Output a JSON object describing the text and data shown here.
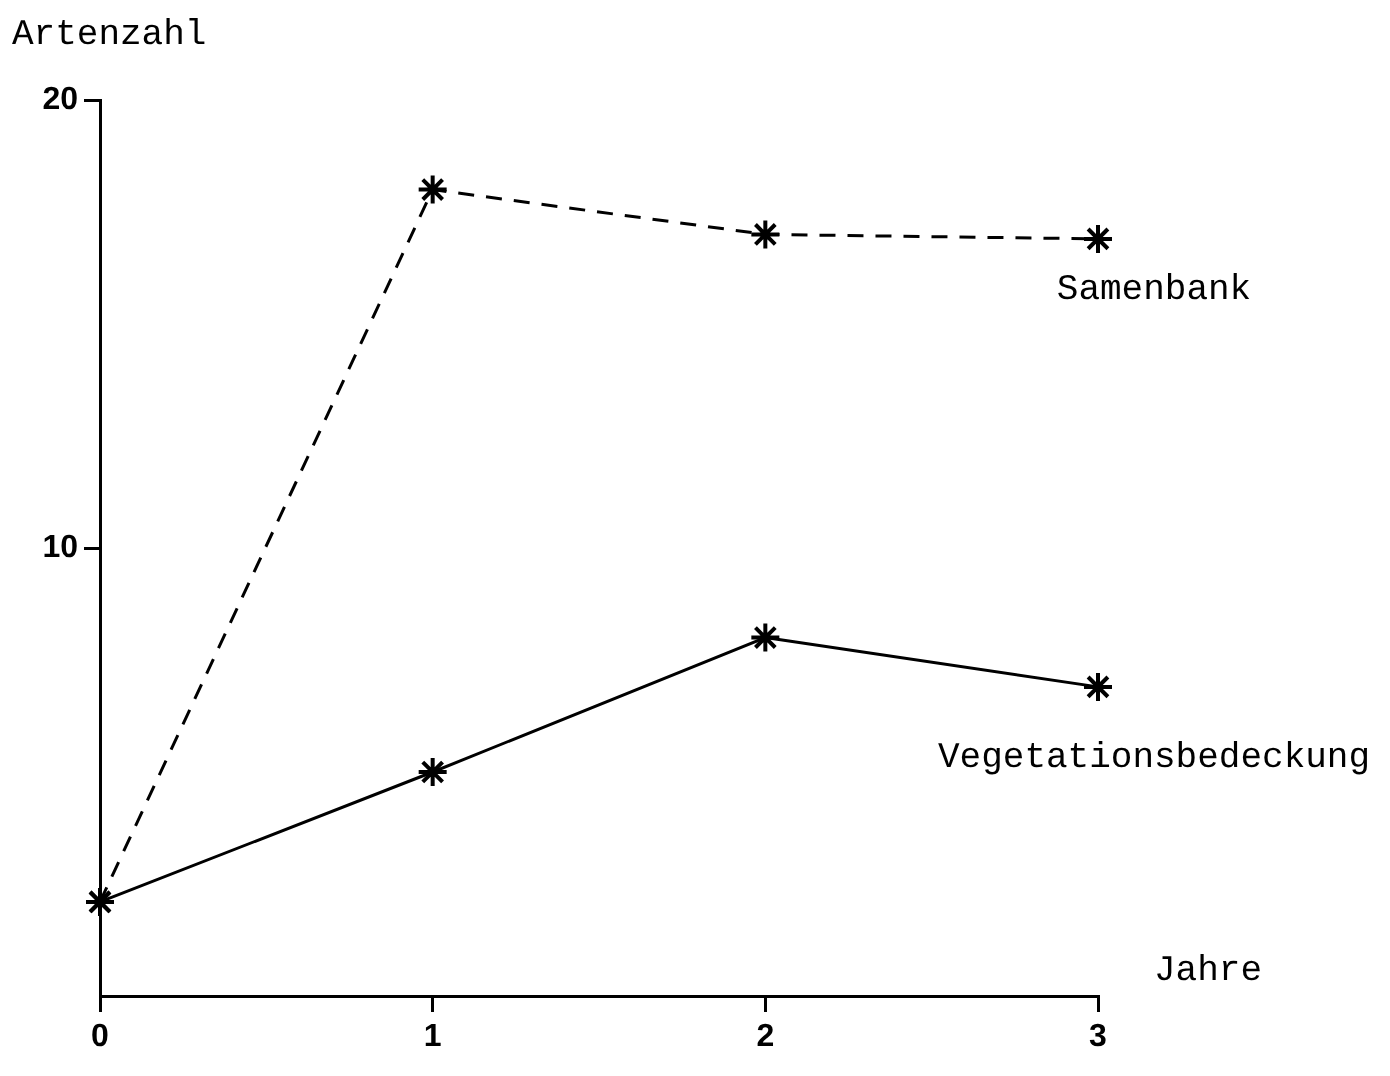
{
  "chart_data": {
    "type": "line",
    "xlabel": "Jahre",
    "ylabel": "Artenzahl",
    "x": [
      0,
      1,
      2,
      3
    ],
    "series": [
      {
        "name": "Samenbank",
        "color": "#000000",
        "line_style": "dashed",
        "values": [
          2.1,
          18,
          17,
          16.9
        ]
      },
      {
        "name": "Vegetationsbedeckung",
        "color": "#000000",
        "line_style": "solid",
        "values": [
          2.1,
          5,
          8,
          6.9
        ]
      }
    ],
    "xlim": [
      0,
      3
    ],
    "xticks": [
      0,
      1,
      2,
      3
    ],
    "ylim": [
      0,
      20
    ],
    "yticks": [
      10,
      20
    ],
    "grid": false,
    "legend": false,
    "marker": "cross"
  }
}
